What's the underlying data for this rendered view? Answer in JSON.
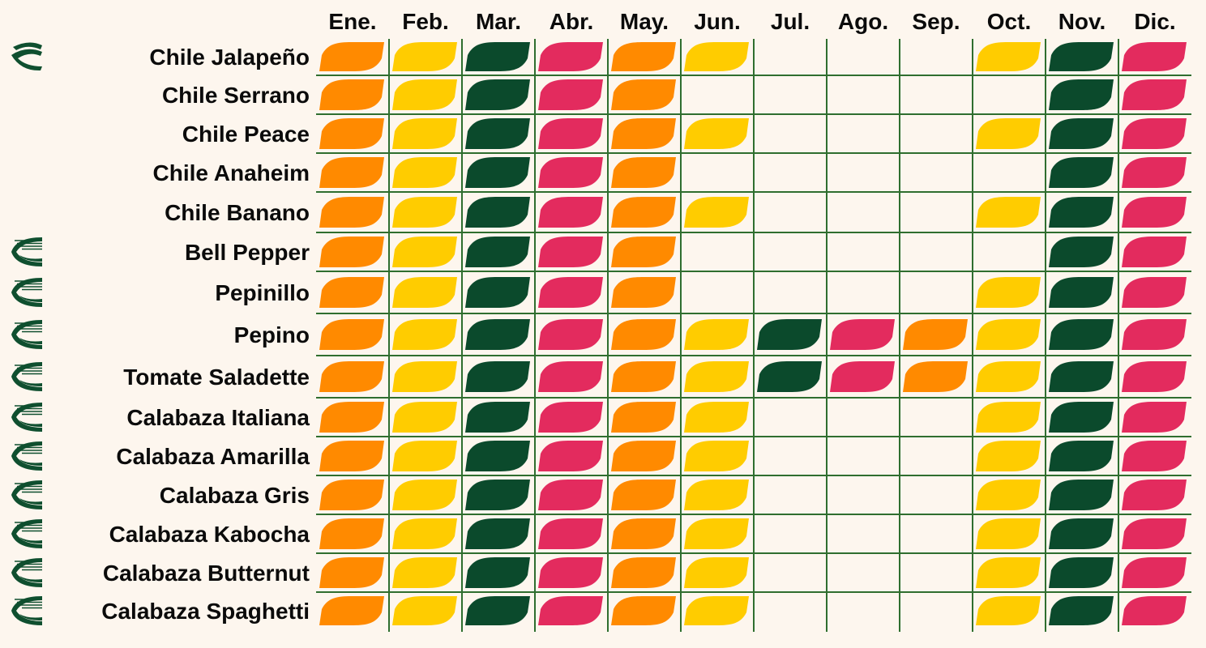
{
  "chart_data": {
    "type": "table",
    "title": "",
    "months": [
      "Ene.",
      "Feb.",
      "Mar.",
      "Abr.",
      "May.",
      "Jun.",
      "Jul.",
      "Ago.",
      "Sep.",
      "Oct.",
      "Nov.",
      "Dic."
    ],
    "colors": {
      "orange": "#ff8a00",
      "yellow": "#ffcc00",
      "green": "#0b4a2c",
      "pink": "#e32b5e",
      "grid": "#2f6e2f",
      "icon": "#0f4f2f",
      "background": "#fdf6ee"
    },
    "rows": [
      {
        "label": "Chile Jalapeño",
        "icon": "leaf-logo-icon",
        "cells": [
          "orange",
          "yellow",
          "green",
          "pink",
          "orange",
          "yellow",
          "",
          "",
          "",
          "yellow",
          "green",
          "pink"
        ]
      },
      {
        "label": "Chile Serrano",
        "icon": "",
        "cells": [
          "orange",
          "yellow",
          "green",
          "pink",
          "orange",
          "",
          "",
          "",
          "",
          "",
          "green",
          "pink"
        ]
      },
      {
        "label": "Chile Peace",
        "icon": "",
        "cells": [
          "orange",
          "yellow",
          "green",
          "pink",
          "orange",
          "yellow",
          "",
          "",
          "",
          "yellow",
          "green",
          "pink"
        ]
      },
      {
        "label": "Chile Anaheim",
        "icon": "",
        "cells": [
          "orange",
          "yellow",
          "green",
          "pink",
          "orange",
          "",
          "",
          "",
          "",
          "",
          "green",
          "pink"
        ]
      },
      {
        "label": "Chile Banano",
        "icon": "",
        "cells": [
          "orange",
          "yellow",
          "green",
          "pink",
          "orange",
          "yellow",
          "",
          "",
          "",
          "yellow",
          "green",
          "pink"
        ]
      },
      {
        "label": "Bell Pepper",
        "icon": "striped-logo-icon",
        "cells": [
          "orange",
          "yellow",
          "green",
          "pink",
          "orange",
          "",
          "",
          "",
          "",
          "",
          "green",
          "pink"
        ]
      },
      {
        "label": "Pepinillo",
        "icon": "striped-logo-icon",
        "cells": [
          "orange",
          "yellow",
          "green",
          "pink",
          "orange",
          "",
          "",
          "",
          "",
          "yellow",
          "green",
          "pink"
        ]
      },
      {
        "label": "Pepino",
        "icon": "striped-logo-icon",
        "cells": [
          "orange",
          "yellow",
          "green",
          "pink",
          "orange",
          "yellow",
          "green",
          "pink",
          "orange",
          "yellow",
          "green",
          "pink"
        ]
      },
      {
        "label": "Tomate Saladette",
        "icon": "striped-logo-icon",
        "cells": [
          "orange",
          "yellow",
          "green",
          "pink",
          "orange",
          "yellow",
          "green",
          "pink",
          "orange",
          "yellow",
          "green",
          "pink"
        ]
      },
      {
        "label": "Calabaza Italiana",
        "icon": "striped-logo-icon",
        "cells": [
          "orange",
          "yellow",
          "green",
          "pink",
          "orange",
          "yellow",
          "",
          "",
          "",
          "yellow",
          "green",
          "pink"
        ]
      },
      {
        "label": "Calabaza Amarilla",
        "icon": "striped-logo-icon",
        "cells": [
          "orange",
          "yellow",
          "green",
          "pink",
          "orange",
          "yellow",
          "",
          "",
          "",
          "yellow",
          "green",
          "pink"
        ]
      },
      {
        "label": "Calabaza Gris",
        "icon": "striped-logo-icon",
        "cells": [
          "orange",
          "yellow",
          "green",
          "pink",
          "orange",
          "yellow",
          "",
          "",
          "",
          "yellow",
          "green",
          "pink"
        ]
      },
      {
        "label": "Calabaza Kabocha",
        "icon": "striped-logo-icon",
        "cells": [
          "orange",
          "yellow",
          "green",
          "pink",
          "orange",
          "yellow",
          "",
          "",
          "",
          "yellow",
          "green",
          "pink"
        ]
      },
      {
        "label": "Calabaza Butternut",
        "icon": "striped-logo-icon",
        "cells": [
          "orange",
          "yellow",
          "green",
          "pink",
          "orange",
          "yellow",
          "",
          "",
          "",
          "yellow",
          "green",
          "pink"
        ]
      },
      {
        "label": "Calabaza Spaghetti",
        "icon": "striped-logo-icon",
        "cells": [
          "orange",
          "yellow",
          "green",
          "pink",
          "orange",
          "yellow",
          "",
          "",
          "",
          "yellow",
          "green",
          "pink"
        ]
      }
    ]
  }
}
